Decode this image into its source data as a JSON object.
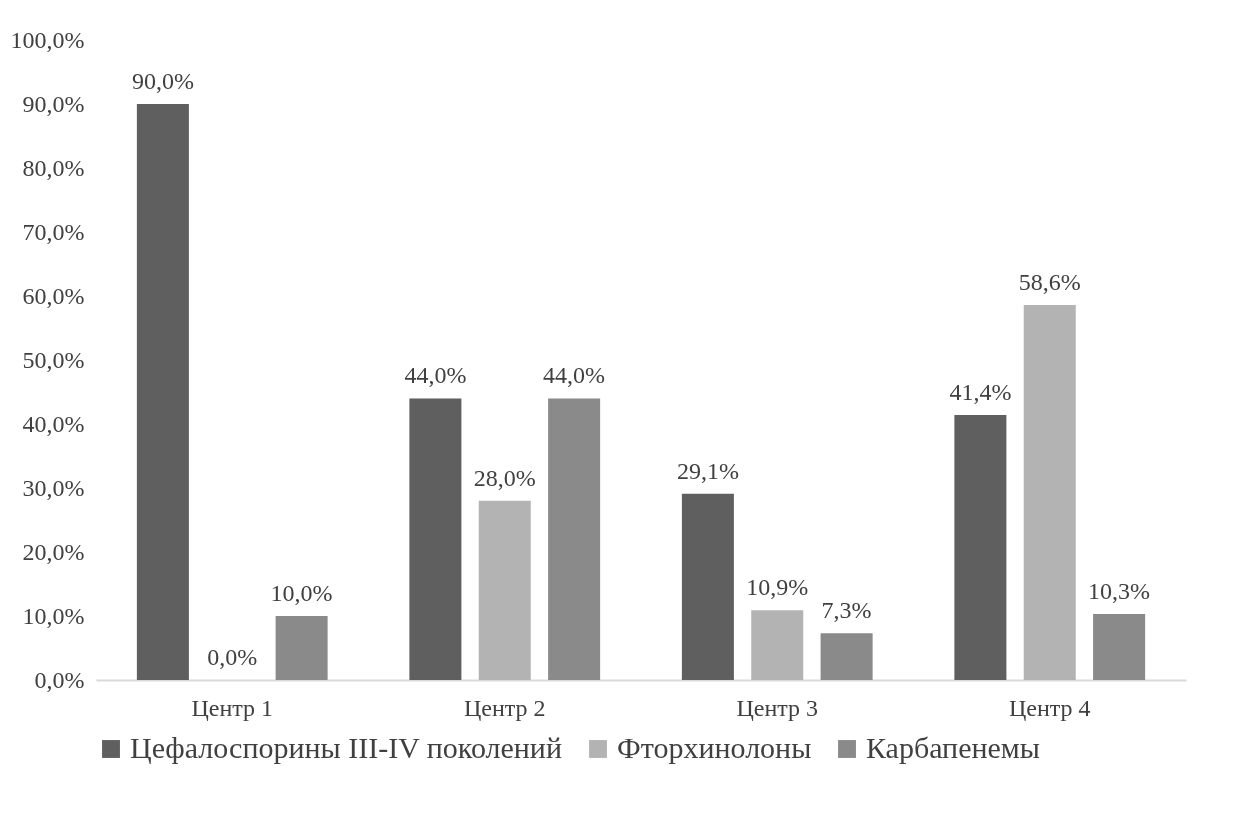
{
  "chart_data": {
    "type": "bar",
    "categories": [
      "Центр 1",
      "Центр 2",
      "Центр 3",
      "Центр 4"
    ],
    "series": [
      {
        "name": "Цефалоспорины III-IV поколений",
        "color": "#5f5f5f",
        "values": [
          90.0,
          44.0,
          29.1,
          41.4
        ],
        "value_labels": [
          "90,0%",
          "44,0%",
          "29,1%",
          "41,4%"
        ]
      },
      {
        "name": "Фторхинолоны",
        "color": "#b3b3b3",
        "values": [
          0.0,
          28.0,
          10.9,
          58.6
        ],
        "value_labels": [
          "0,0%",
          "28,0%",
          "10,9%",
          "58,6%"
        ]
      },
      {
        "name": "Карбапенемы",
        "color": "#8a8a8a",
        "values": [
          10.0,
          44.0,
          7.3,
          10.3
        ],
        "value_labels": [
          "10,0%",
          "44,0%",
          "7,3%",
          "10,3%"
        ]
      }
    ],
    "ylim": [
      0,
      100
    ],
    "yticks": [
      {
        "value": 0,
        "label": "0,0%"
      },
      {
        "value": 10,
        "label": "10,0%"
      },
      {
        "value": 20,
        "label": "20,0%"
      },
      {
        "value": 30,
        "label": "30,0%"
      },
      {
        "value": 40,
        "label": "40,0%"
      },
      {
        "value": 50,
        "label": "50,0%"
      },
      {
        "value": 60,
        "label": "60,0%"
      },
      {
        "value": 70,
        "label": "70,0%"
      },
      {
        "value": 80,
        "label": "80,0%"
      },
      {
        "value": 90,
        "label": "90,0%"
      },
      {
        "value": 100,
        "label": "100,0%"
      }
    ],
    "grid": false,
    "legend": "bottom"
  }
}
